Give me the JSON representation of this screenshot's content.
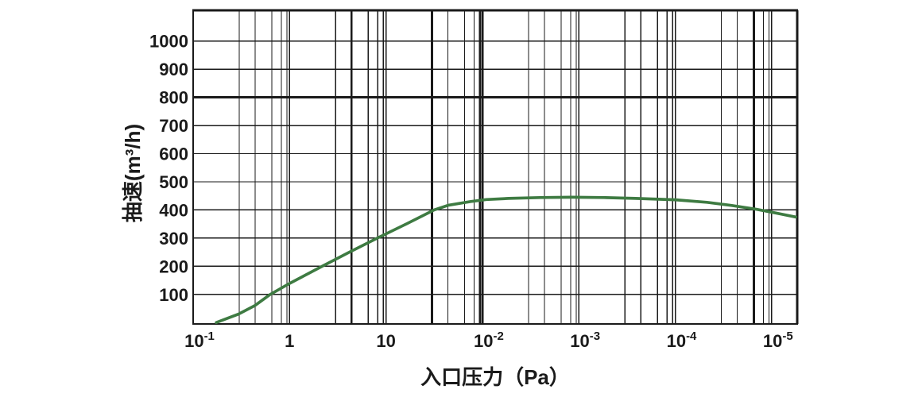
{
  "chart_data": {
    "type": "line",
    "title": "",
    "xlabel": "入口压力（Pa）",
    "ylabel": "抽速(m³/h)",
    "x_scale": "log-decades",
    "x_tick_labels": [
      {
        "base": "10",
        "exp": "-1"
      },
      {
        "base": "1",
        "exp": ""
      },
      {
        "base": "10",
        "exp": ""
      },
      {
        "base": "10",
        "exp": "-2"
      },
      {
        "base": "10",
        "exp": "-3"
      },
      {
        "base": "10",
        "exp": "-4"
      },
      {
        "base": "10",
        "exp": "-5"
      }
    ],
    "y_ticks": [
      100,
      200,
      300,
      400,
      500,
      600,
      700,
      800,
      900,
      1000
    ],
    "ylim": [
      0,
      1110
    ],
    "grid": {
      "show": true,
      "minor_decade_fractions": [
        0.478,
        0.643,
        0.816,
        0.915,
        0.973
      ]
    },
    "series": [
      {
        "name": "pumping-speed-curve",
        "color": "#3e7b42",
        "x_unit": "decades-from-first-tick",
        "y_unit": "m³/h",
        "points": [
          [
            0.24,
            0
          ],
          [
            0.47,
            30
          ],
          [
            0.64,
            60
          ],
          [
            0.8,
            100
          ],
          [
            0.98,
            135
          ],
          [
            1.15,
            166
          ],
          [
            1.34,
            200
          ],
          [
            1.62,
            250
          ],
          [
            1.91,
            300
          ],
          [
            2.21,
            350
          ],
          [
            2.5,
            400
          ],
          [
            2.65,
            417
          ],
          [
            2.88,
            430
          ],
          [
            3.04,
            437
          ],
          [
            3.27,
            441
          ],
          [
            3.6,
            444
          ],
          [
            3.93,
            445
          ],
          [
            4.26,
            444
          ],
          [
            4.59,
            441
          ],
          [
            5.0,
            436
          ],
          [
            5.33,
            427
          ],
          [
            5.58,
            416
          ],
          [
            5.83,
            403
          ],
          [
            6.03,
            390
          ],
          [
            6.25,
            375
          ]
        ]
      }
    ],
    "colors": {
      "axis": "#1a1a1a",
      "background": "#ffffff"
    }
  }
}
